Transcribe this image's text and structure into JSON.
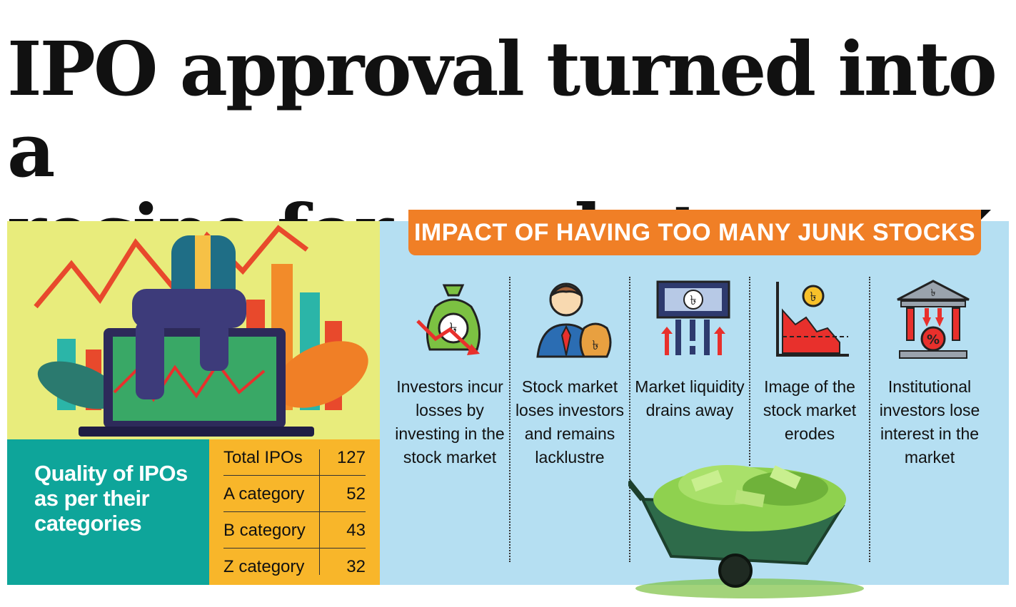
{
  "headline": {
    "line1": "IPO approval turned into a",
    "line2": "recipe for market mischief"
  },
  "quality": {
    "title": "Quality of IPOs as per their categories"
  },
  "ipo_table": {
    "rows": [
      {
        "label": "Total IPOs",
        "value": "127"
      },
      {
        "label": "A category",
        "value": "52"
      },
      {
        "label": "B category",
        "value": "43"
      },
      {
        "label": "Z category",
        "value": "32"
      }
    ]
  },
  "impact": {
    "title": "IMPACT OF HAVING TOO MANY JUNK STOCKS",
    "items": [
      {
        "icon": "money-bag-down-icon",
        "text": "Investors incur losses by investing in the stock market"
      },
      {
        "icon": "investor-money-bag-icon",
        "text": "Stock market loses investors and remains lacklustre"
      },
      {
        "icon": "liquidity-drain-icon",
        "text": "Market liquidity drains away"
      },
      {
        "icon": "falling-chart-icon",
        "text": "Image of the stock market erodes"
      },
      {
        "icon": "institution-percent-icon",
        "text": "Institutional investors lose interest in the market"
      }
    ]
  },
  "colors": {
    "left_panel": "#e8ec7c",
    "right_panel": "#b5dff2",
    "quality_box": "#0ea59a",
    "table_box": "#f8b62a",
    "banner": "#f07f26"
  }
}
